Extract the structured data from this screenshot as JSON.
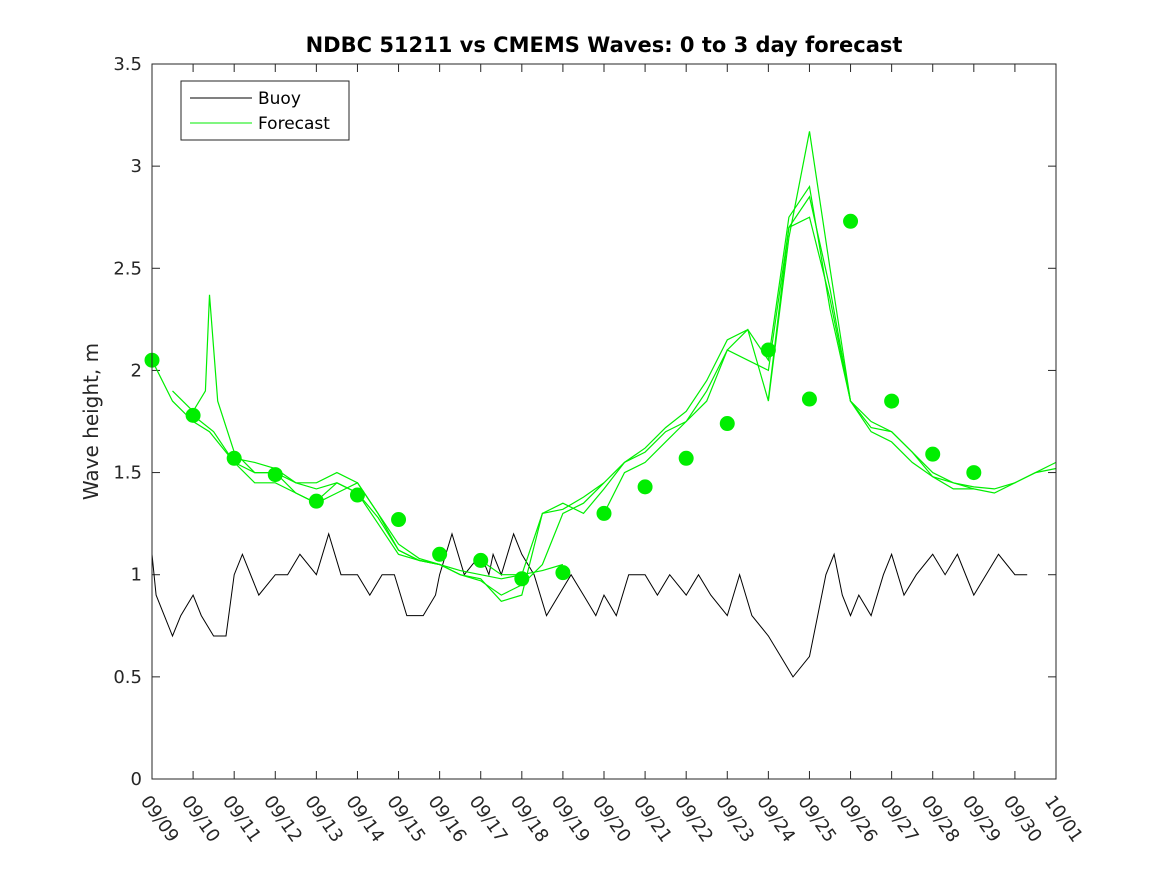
{
  "chart_data": {
    "type": "line",
    "title": "NDBC 51211 vs CMEMS Waves: 0 to 3 day forecast",
    "xlabel": "",
    "ylabel": "Wave height, m",
    "ylim": [
      0,
      3.5
    ],
    "yticks": [
      0,
      0.5,
      1,
      1.5,
      2,
      2.5,
      3,
      3.5
    ],
    "ytick_labels": [
      "0",
      "0.5",
      "1",
      "1.5",
      "2",
      "2.5",
      "3",
      "3.5"
    ],
    "xlim": [
      0,
      22
    ],
    "xtick_labels": [
      "09/09",
      "09/10",
      "09/11",
      "09/12",
      "09/13",
      "09/14",
      "09/15",
      "09/16",
      "09/17",
      "09/18",
      "09/19",
      "09/20",
      "09/21",
      "09/22",
      "09/23",
      "09/24",
      "09/25",
      "09/26",
      "09/27",
      "09/28",
      "09/29",
      "09/30",
      "10/01"
    ],
    "grid": false,
    "legend": {
      "location": "top-left",
      "entries": [
        "Buoy",
        "Forecast"
      ]
    },
    "colors": {
      "buoy": "#000000",
      "forecast": "#00ee00",
      "axis": "#262626"
    },
    "series": [
      {
        "name": "Buoy",
        "x": [
          0,
          0.1,
          0.3,
          0.5,
          0.7,
          1.0,
          1.2,
          1.5,
          1.8,
          2.0,
          2.2,
          2.6,
          3.0,
          3.3,
          3.6,
          4.0,
          4.3,
          4.6,
          5.0,
          5.3,
          5.6,
          5.9,
          6.2,
          6.6,
          6.9,
          7.0,
          7.3,
          7.6,
          8.0,
          8.2,
          8.3,
          8.5,
          8.8,
          9.0,
          9.3,
          9.6,
          9.9,
          10.2,
          10.5,
          10.8,
          11.0,
          11.3,
          11.6,
          12.0,
          12.3,
          12.6,
          13.0,
          13.3,
          13.6,
          14.0,
          14.3,
          14.6,
          15.0,
          15.3,
          15.6,
          16.0,
          16.2,
          16.4,
          16.6,
          16.8,
          17.0,
          17.2,
          17.5,
          17.8,
          18.0,
          18.3,
          18.6,
          19.0,
          19.3,
          19.6,
          20.0,
          20.3,
          20.6,
          21.0,
          21.3
        ],
        "y": [
          1.1,
          0.9,
          0.8,
          0.7,
          0.8,
          0.9,
          0.8,
          0.7,
          0.7,
          1.0,
          1.1,
          0.9,
          1.0,
          1.0,
          1.1,
          1.0,
          1.2,
          1.0,
          1.0,
          0.9,
          1.0,
          1.0,
          0.8,
          0.8,
          0.9,
          1.0,
          1.2,
          1.0,
          1.1,
          1.0,
          1.1,
          1.0,
          1.2,
          1.1,
          1.0,
          0.8,
          0.9,
          1.0,
          0.9,
          0.8,
          0.9,
          0.8,
          1.0,
          1.0,
          0.9,
          1.0,
          0.9,
          1.0,
          0.9,
          0.8,
          1.0,
          0.8,
          0.7,
          0.6,
          0.5,
          0.6,
          0.8,
          1.0,
          1.1,
          0.9,
          0.8,
          0.9,
          0.8,
          1.0,
          1.1,
          0.9,
          1.0,
          1.1,
          1.0,
          1.1,
          0.9,
          1.0,
          1.1,
          1.0,
          1.0
        ]
      },
      {
        "name": "Forecast",
        "runs": [
          {
            "x": [
              0,
              0.5,
              1.0,
              1.4,
              2.0,
              2.5,
              3.0,
              3.5,
              4.0
            ],
            "y": [
              2.05,
              1.85,
              1.75,
              1.7,
              1.55,
              1.45,
              1.45,
              1.4,
              1.35
            ]
          },
          {
            "x": [
              0.5,
              1.0,
              1.3,
              1.4,
              1.6,
              2.0,
              2.5,
              3.0,
              3.5,
              4.0,
              4.5,
              5.0,
              5.5,
              6.0,
              6.5,
              7.0
            ],
            "y": [
              1.9,
              1.8,
              1.9,
              2.37,
              1.85,
              1.6,
              1.5,
              1.5,
              1.4,
              1.35,
              1.4,
              1.45,
              1.3,
              1.15,
              1.08,
              1.05
            ]
          },
          {
            "x": [
              1.0,
              1.5,
              2.0,
              2.5,
              3.0,
              3.5,
              4.0,
              4.5,
              5.0,
              5.5,
              6.0,
              6.5,
              7.0,
              7.5,
              8.0,
              8.5,
              9.0,
              9.5,
              10.0
            ],
            "y": [
              1.78,
              1.7,
              1.55,
              1.5,
              1.5,
              1.45,
              1.45,
              1.5,
              1.45,
              1.3,
              1.12,
              1.07,
              1.05,
              1.02,
              1.0,
              0.98,
              1.0,
              1.02,
              1.05
            ]
          },
          {
            "x": [
              2.0,
              2.5,
              3.0,
              3.5,
              4.0,
              4.5,
              5.0,
              5.5,
              6.0,
              6.5,
              7.0,
              7.5,
              8.0,
              8.5,
              9.0,
              9.5,
              10.0,
              10.5,
              11.0
            ],
            "y": [
              1.57,
              1.55,
              1.52,
              1.45,
              1.42,
              1.45,
              1.4,
              1.28,
              1.12,
              1.07,
              1.05,
              1.0,
              0.97,
              0.9,
              0.95,
              1.05,
              1.3,
              1.35,
              1.45
            ]
          },
          {
            "x": [
              4.0,
              4.5,
              5.0,
              5.5,
              6.0,
              6.5,
              7.0,
              7.5,
              8.0,
              8.5,
              9.0,
              9.5,
              10.0,
              10.5,
              11.0,
              11.5,
              12.0,
              12.5,
              13.0
            ],
            "y": [
              1.36,
              1.45,
              1.4,
              1.25,
              1.1,
              1.07,
              1.05,
              1.0,
              0.98,
              0.87,
              0.9,
              1.3,
              1.35,
              1.3,
              1.42,
              1.55,
              1.6,
              1.7,
              1.75
            ]
          },
          {
            "x": [
              8.0,
              8.5,
              9.0,
              9.5,
              10.0,
              10.5,
              11.0,
              11.5,
              12.0,
              12.5,
              13.0,
              13.5,
              14.0,
              14.5,
              15.0,
              15.5,
              16.0,
              16.5,
              17.0
            ],
            "y": [
              1.07,
              1.0,
              1.0,
              1.3,
              1.32,
              1.38,
              1.45,
              1.55,
              1.62,
              1.72,
              1.8,
              1.95,
              2.15,
              2.2,
              1.85,
              2.65,
              3.17,
              2.5,
              1.85
            ]
          },
          {
            "x": [
              11.0,
              11.5,
              12.0,
              12.5,
              13.0,
              13.5,
              14.0,
              14.5,
              15.0,
              15.5,
              16.0,
              16.5,
              17.0,
              17.5,
              18.0,
              18.5,
              19.0,
              19.5,
              20.0
            ],
            "y": [
              1.3,
              1.5,
              1.55,
              1.65,
              1.75,
              1.85,
              2.1,
              2.05,
              2.0,
              2.7,
              2.85,
              2.4,
              1.85,
              1.75,
              1.7,
              1.6,
              1.5,
              1.45,
              1.42
            ]
          },
          {
            "x": [
              13.0,
              13.5,
              14.0,
              14.5,
              15.0,
              15.5,
              16.0,
              16.5,
              17.0,
              17.5,
              18.0,
              18.5,
              19.0,
              19.5,
              20.0,
              20.5,
              21.0,
              21.5,
              22.0
            ],
            "y": [
              1.75,
              1.9,
              2.1,
              2.2,
              2.05,
              2.75,
              2.9,
              2.3,
              1.85,
              1.72,
              1.7,
              1.6,
              1.48,
              1.45,
              1.43,
              1.42,
              1.45,
              1.5,
              1.55
            ]
          },
          {
            "x": [
              15.0,
              15.5,
              16.0,
              16.5,
              17.0,
              17.5,
              18.0,
              18.5,
              19.0,
              19.5,
              20.0,
              20.5,
              21.0,
              21.5,
              22.0
            ],
            "y": [
              1.86,
              2.7,
              2.75,
              2.35,
              1.85,
              1.7,
              1.65,
              1.55,
              1.48,
              1.42,
              1.42,
              1.4,
              1.45,
              1.5,
              1.52
            ]
          }
        ],
        "markers": {
          "x": [
            0,
            1,
            2,
            3,
            4,
            5,
            6,
            7,
            8,
            9,
            10,
            11,
            12,
            13,
            14,
            15,
            16,
            17,
            18,
            19,
            20
          ],
          "y": [
            2.05,
            1.78,
            1.57,
            1.49,
            1.36,
            1.39,
            1.27,
            1.1,
            1.07,
            0.98,
            1.01,
            1.3,
            1.43,
            1.57,
            1.74,
            2.1,
            1.86,
            2.73,
            1.85,
            1.59,
            1.5
          ]
        }
      }
    ]
  }
}
